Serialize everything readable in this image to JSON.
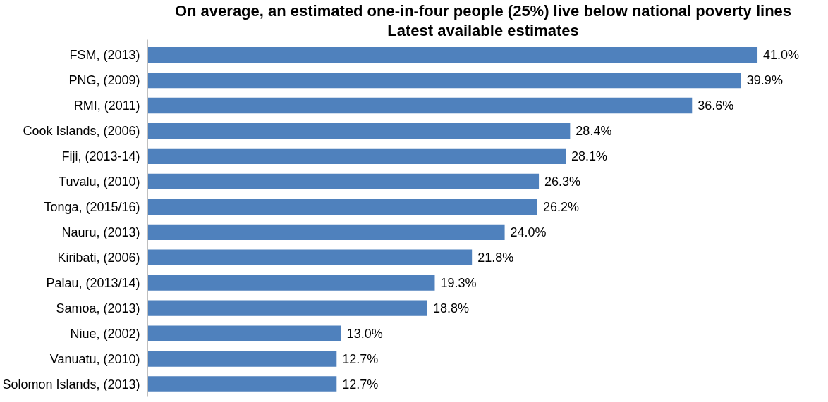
{
  "chart_data": {
    "type": "bar",
    "orientation": "horizontal",
    "title": "On average, an estimated one-in-four people (25%) live below national poverty lines",
    "subtitle": "Latest available estimates",
    "categories": [
      "FSM, (2013)",
      "PNG, (2009)",
      "RMI, (2011)",
      "Cook Islands, (2006)",
      "Fiji, (2013-14)",
      "Tuvalu, (2010)",
      "Tonga, (2015/16)",
      "Nauru, (2013)",
      "Kiribati, (2006)",
      "Palau, (2013/14)",
      "Samoa, (2013)",
      "Niue, (2002)",
      "Vanuatu, (2010)",
      "Solomon Islands, (2013)"
    ],
    "values": [
      41.0,
      39.9,
      36.6,
      28.4,
      28.1,
      26.3,
      26.2,
      24.0,
      21.8,
      19.3,
      18.8,
      13.0,
      12.7,
      12.7
    ],
    "value_labels": [
      "41.0%",
      "39.9%",
      "36.6%",
      "28.4%",
      "28.1%",
      "26.3%",
      "26.2%",
      "24.0%",
      "21.8%",
      "19.3%",
      "18.8%",
      "13.0%",
      "12.7%",
      "12.7%"
    ],
    "color": "#4f81bd",
    "grid": false
  }
}
